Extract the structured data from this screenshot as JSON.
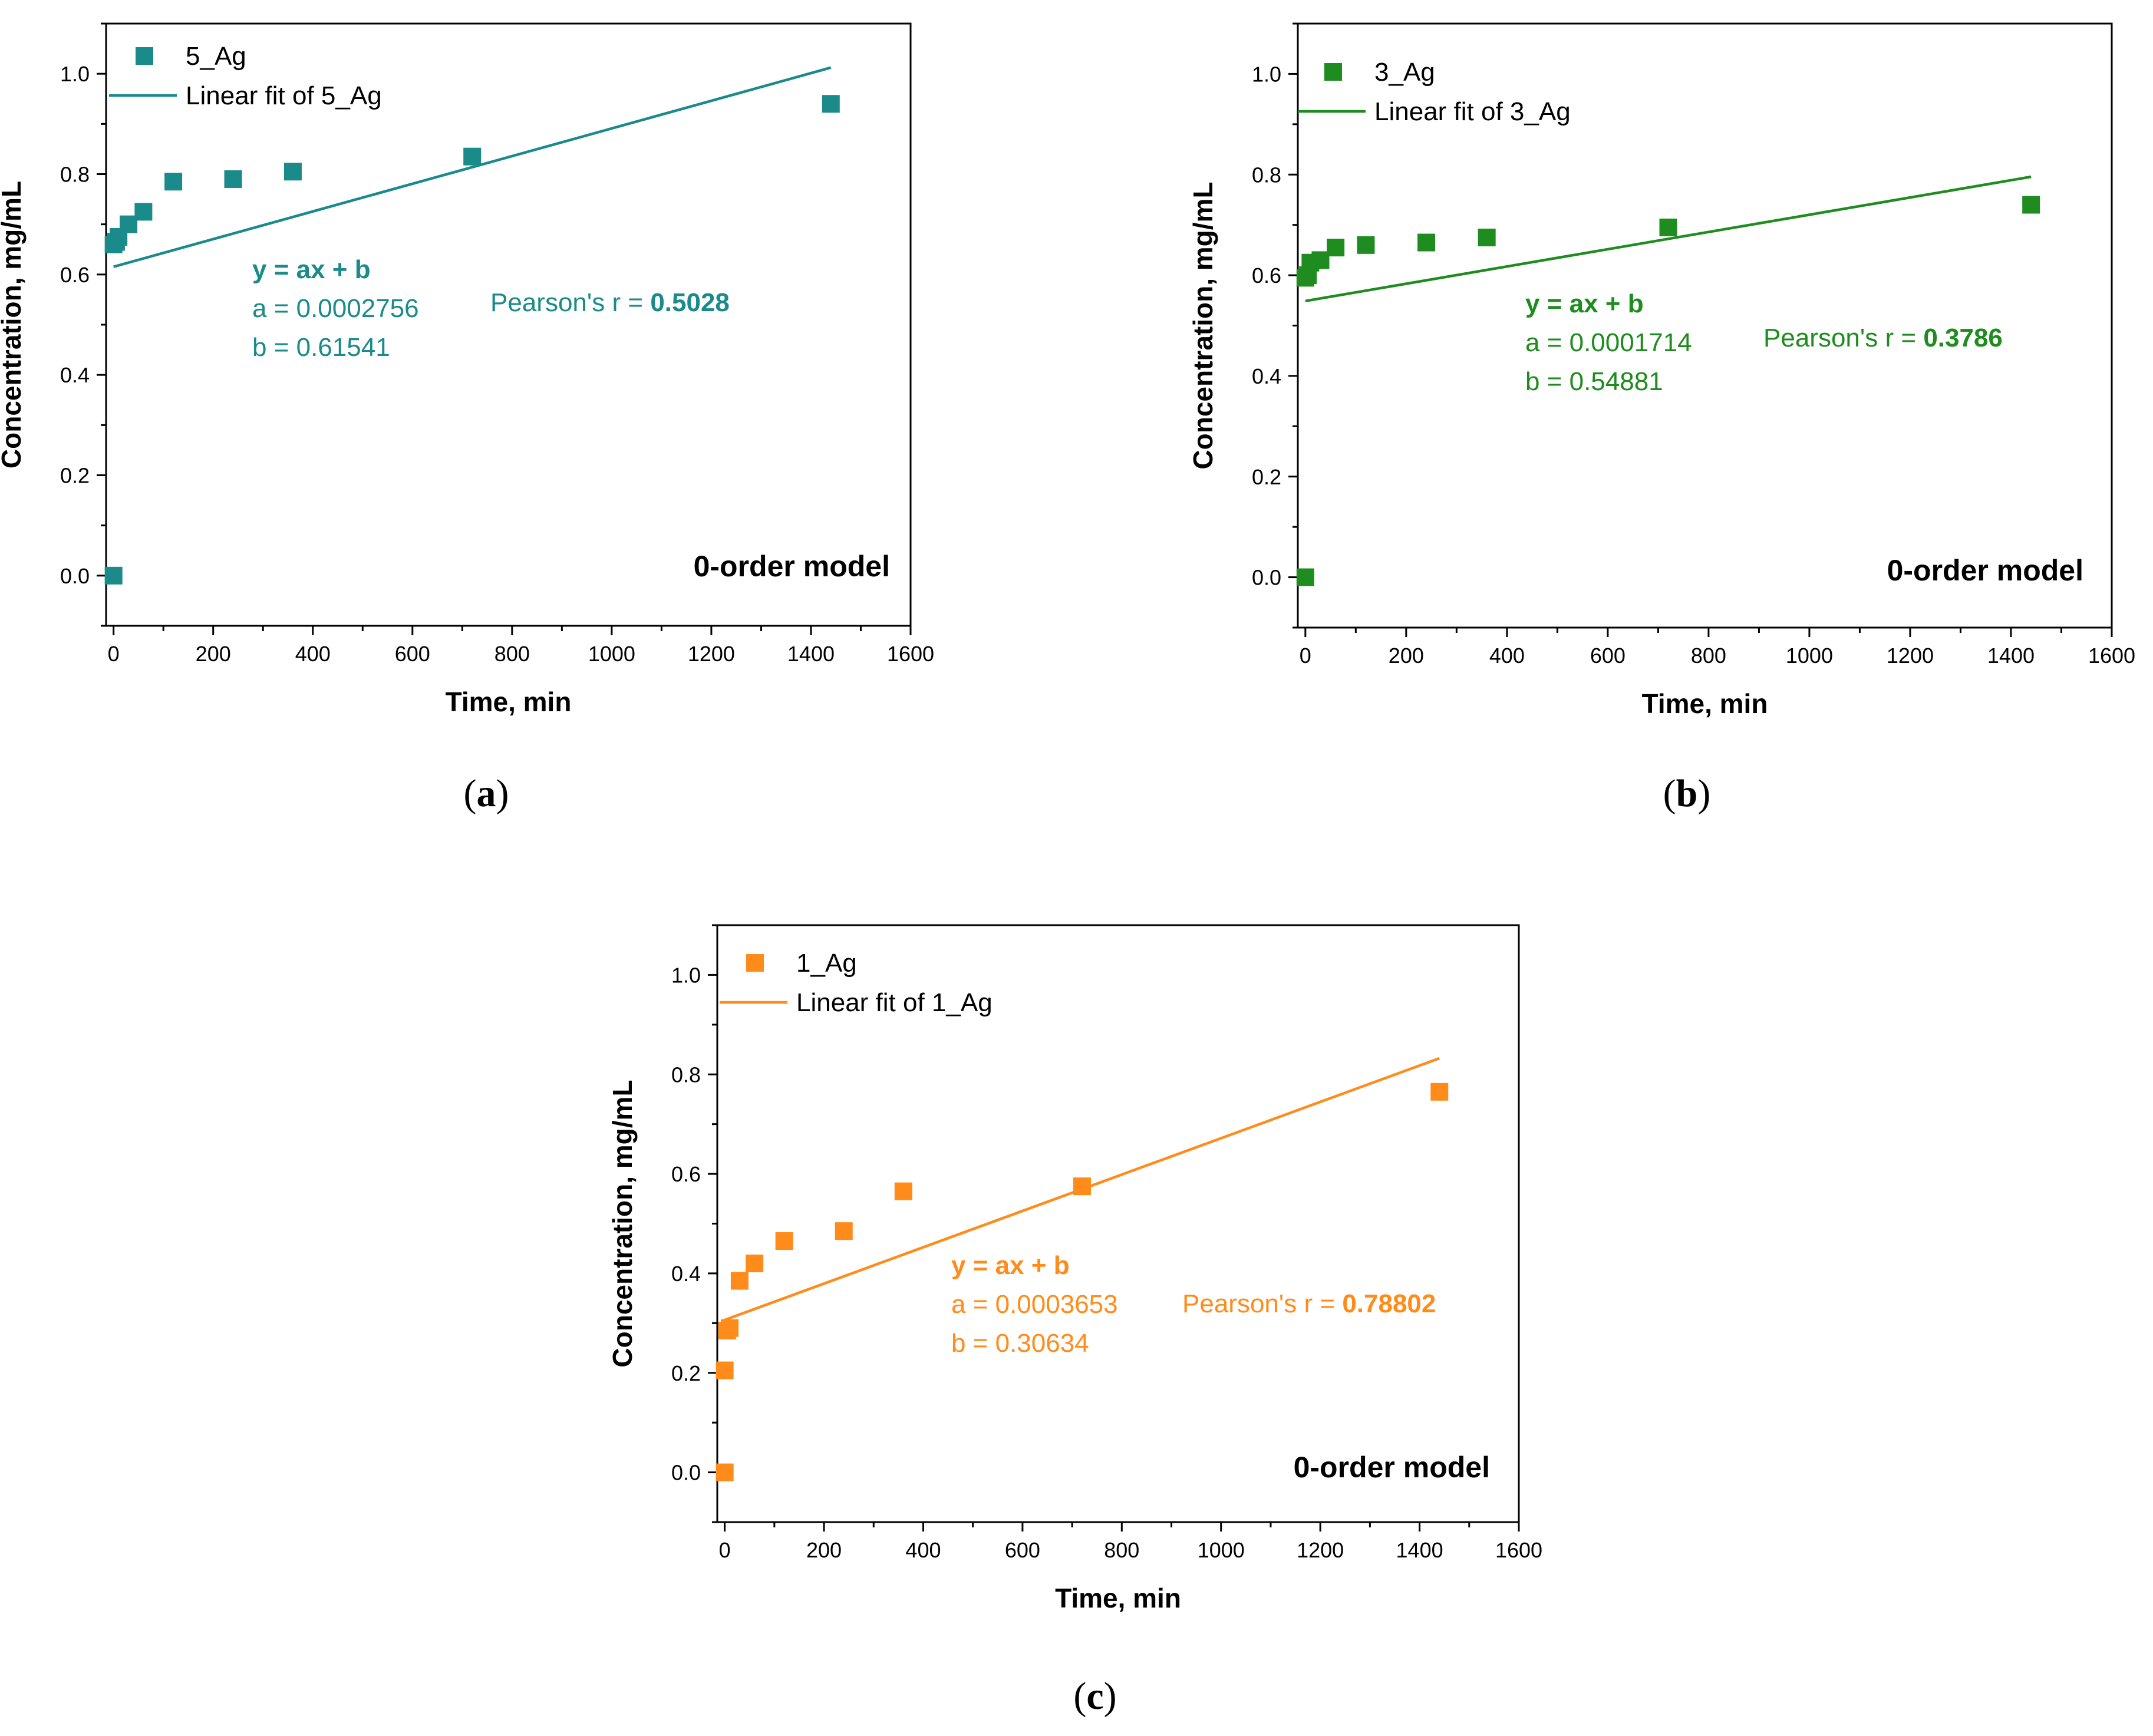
{
  "chart_data": [
    {
      "type": "scatter",
      "panel": "(a)",
      "panel_letter": "a",
      "color": "#1a8a8a",
      "xlabel": "Time, min",
      "ylabel": "Concentration, mg/mL",
      "xlim": [
        -15,
        1600
      ],
      "ylim": [
        -0.1,
        1.1
      ],
      "xticks": [
        0,
        200,
        400,
        600,
        800,
        1000,
        1200,
        1400,
        1600
      ],
      "yticks": [
        0.0,
        0.2,
        0.4,
        0.6,
        0.8,
        1.0
      ],
      "series": [
        {
          "name": "5_Ag",
          "x": [
            0,
            0,
            5,
            10,
            30,
            60,
            120,
            240,
            360,
            720,
            1440
          ],
          "y": [
            0.0,
            0.66,
            0.665,
            0.675,
            0.7,
            0.725,
            0.785,
            0.79,
            0.805,
            0.835,
            0.94
          ]
        }
      ],
      "fit": {
        "name": "Linear fit of 5_Ag",
        "slope": 0.0002756,
        "intercept": 0.61541,
        "x_range": [
          0,
          1440
        ]
      },
      "annotations": {
        "equation": "y = ax + b",
        "a_text": "a = 0.0002756",
        "b_text": "b = 0.61541",
        "pearson_label": "Pearson's r = ",
        "pearson_value": "0.5028",
        "model": "0-order model"
      }
    },
    {
      "type": "scatter",
      "panel": "(b)",
      "panel_letter": "b",
      "color": "#1e8c1e",
      "xlabel": "Time, min",
      "ylabel": "Concentration, mg/mL",
      "xlim": [
        -15,
        1600
      ],
      "ylim": [
        -0.1,
        1.1
      ],
      "xticks": [
        0,
        200,
        400,
        600,
        800,
        1000,
        1200,
        1400,
        1600
      ],
      "yticks": [
        0.0,
        0.2,
        0.4,
        0.6,
        0.8,
        1.0
      ],
      "series": [
        {
          "name": "3_Ag",
          "x": [
            0,
            0,
            5,
            10,
            30,
            60,
            120,
            240,
            360,
            720,
            1440
          ],
          "y": [
            0.0,
            0.595,
            0.6,
            0.625,
            0.63,
            0.655,
            0.66,
            0.665,
            0.675,
            0.695,
            0.74
          ]
        }
      ],
      "fit": {
        "name": "Linear fit of 3_Ag",
        "slope": 0.0001714,
        "intercept": 0.54881,
        "x_range": [
          0,
          1440
        ]
      },
      "annotations": {
        "equation": "y = ax + b",
        "a_text": "a = 0.0001714",
        "b_text": "b = 0.54881",
        "pearson_label": "Pearson's r = ",
        "pearson_value": "0.3786",
        "model": "0-order model"
      }
    },
    {
      "type": "scatter",
      "panel": "(c)",
      "panel_letter": "c",
      "color": "#ff8c1a",
      "xlabel": "Time, min",
      "ylabel": "Concentration, mg/mL",
      "xlim": [
        -15,
        1600
      ],
      "ylim": [
        -0.1,
        1.1
      ],
      "xticks": [
        0,
        200,
        400,
        600,
        800,
        1000,
        1200,
        1400,
        1600
      ],
      "yticks": [
        0.0,
        0.2,
        0.4,
        0.6,
        0.8,
        1.0
      ],
      "series": [
        {
          "name": "1_Ag",
          "x": [
            0,
            0,
            5,
            10,
            30,
            60,
            120,
            240,
            360,
            720,
            1440
          ],
          "y": [
            0.0,
            0.205,
            0.285,
            0.29,
            0.385,
            0.42,
            0.465,
            0.485,
            0.565,
            0.575,
            0.765
          ]
        }
      ],
      "fit": {
        "name": "Linear fit of 1_Ag",
        "slope": 0.0003653,
        "intercept": 0.30634,
        "x_range": [
          0,
          1440
        ]
      },
      "annotations": {
        "equation": "y = ax + b",
        "a_text": "a = 0.0003653",
        "b_text": "b = 0.30634",
        "pearson_label": "Pearson's r = ",
        "pearson_value": "0.78802",
        "model": "0-order model"
      }
    }
  ]
}
